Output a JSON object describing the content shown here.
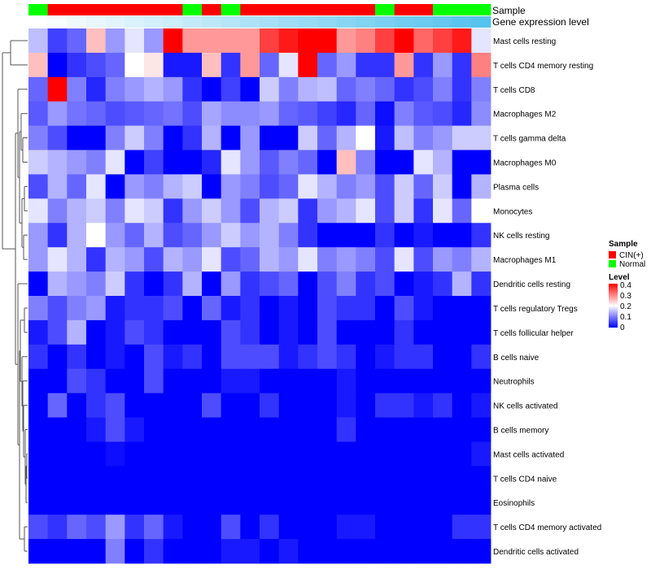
{
  "chart_data": {
    "type": "heatmap",
    "title": "",
    "row_labels": [
      "Mast cells resting",
      "T cells CD4 memory resting",
      "T cells CD8",
      "Macrophages M2",
      "T cells gamma delta",
      "Macrophages M0",
      "Plasma cells",
      "Monocytes",
      "NK cells resting",
      "Macrophages M1",
      "Dendritic cells resting",
      "T cells regulatory  Tregs",
      "T cells follicular helper",
      "B cells naive",
      "Neutrophils",
      "NK cells activated",
      "B cells memory",
      "Mast cells activated",
      "T cells CD4 naive",
      "Eosinophils",
      "T cells CD4 memory activated",
      "Dendritic cells activated"
    ],
    "annotation_tracks": [
      {
        "name": "Sample",
        "values": [
          "Normal",
          "CIN(+)",
          "CIN(+)",
          "CIN(+)",
          "CIN(+)",
          "CIN(+)",
          "CIN(+)",
          "CIN(+)",
          "Normal",
          "CIN(+)",
          "Normal",
          "CIN(+)",
          "CIN(+)",
          "CIN(+)",
          "CIN(+)",
          "CIN(+)",
          "CIN(+)",
          "CIN(+)",
          "Normal",
          "CIN(+)",
          "CIN(+)",
          "Normal",
          "Normal",
          "Normal"
        ]
      },
      {
        "name": "Gene expression level",
        "values": [
          0.0,
          0.04,
          0.09,
          0.13,
          0.17,
          0.22,
          0.26,
          0.3,
          0.35,
          0.39,
          0.43,
          0.48,
          0.52,
          0.57,
          0.61,
          0.65,
          0.7,
          0.74,
          0.78,
          0.83,
          0.87,
          0.91,
          0.96,
          1.0
        ]
      }
    ],
    "values": [
      [
        0.15,
        0.05,
        0.08,
        0.25,
        0.12,
        0.18,
        0.12,
        0.4,
        0.28,
        0.28,
        0.28,
        0.28,
        0.35,
        0.38,
        0.4,
        0.4,
        0.28,
        0.3,
        0.35,
        0.4,
        0.32,
        0.35,
        0.38,
        0.18
      ],
      [
        0.25,
        0.0,
        0.04,
        0.06,
        0.08,
        0.2,
        0.22,
        0.02,
        0.02,
        0.25,
        0.04,
        0.28,
        0.08,
        0.18,
        0.4,
        0.08,
        0.12,
        0.04,
        0.04,
        0.28,
        0.04,
        0.12,
        0.04,
        0.3
      ],
      [
        0.08,
        0.4,
        0.1,
        0.03,
        0.1,
        0.12,
        0.14,
        0.12,
        0.04,
        0.0,
        0.05,
        0.0,
        0.16,
        0.1,
        0.14,
        0.15,
        0.08,
        0.1,
        0.08,
        0.04,
        0.06,
        0.1,
        0.04,
        0.1
      ],
      [
        0.07,
        0.12,
        0.09,
        0.08,
        0.06,
        0.07,
        0.08,
        0.09,
        0.06,
        0.13,
        0.11,
        0.11,
        0.12,
        0.08,
        0.07,
        0.05,
        0.03,
        0.08,
        0.01,
        0.1,
        0.07,
        0.06,
        0.03,
        0.11
      ],
      [
        0.1,
        0.06,
        0.0,
        0.0,
        0.1,
        0.16,
        0.1,
        0.0,
        0.04,
        0.14,
        0.0,
        0.12,
        0.0,
        0.0,
        0.16,
        0.08,
        0.14,
        0.2,
        0.02,
        0.15,
        0.1,
        0.12,
        0.16,
        0.16
      ],
      [
        0.16,
        0.14,
        0.12,
        0.1,
        0.18,
        0.0,
        0.05,
        0.0,
        0.0,
        0.03,
        0.18,
        0.12,
        0.07,
        0.1,
        0.08,
        0.0,
        0.25,
        0.1,
        0.0,
        0.0,
        0.18,
        0.14,
        0.0,
        0.0
      ],
      [
        0.06,
        0.14,
        0.08,
        0.18,
        0.0,
        0.12,
        0.1,
        0.14,
        0.16,
        0.0,
        0.12,
        0.1,
        0.06,
        0.08,
        0.18,
        0.14,
        0.1,
        0.12,
        0.06,
        0.16,
        0.08,
        0.16,
        0.0,
        0.14
      ],
      [
        0.18,
        0.1,
        0.14,
        0.16,
        0.1,
        0.18,
        0.16,
        0.04,
        0.12,
        0.16,
        0.12,
        0.06,
        0.14,
        0.16,
        0.04,
        0.12,
        0.14,
        0.18,
        0.06,
        0.16,
        0.04,
        0.18,
        0.08,
        0.2
      ],
      [
        0.12,
        0.04,
        0.14,
        0.2,
        0.12,
        0.08,
        0.14,
        0.06,
        0.08,
        0.12,
        0.16,
        0.12,
        0.14,
        0.1,
        0.04,
        0.0,
        0.0,
        0.0,
        0.04,
        0.0,
        0.02,
        0.0,
        0.0,
        0.04
      ],
      [
        0.12,
        0.18,
        0.14,
        0.04,
        0.14,
        0.12,
        0.06,
        0.14,
        0.12,
        0.18,
        0.06,
        0.08,
        0.14,
        0.12,
        0.18,
        0.1,
        0.12,
        0.1,
        0.06,
        0.18,
        0.06,
        0.12,
        0.1,
        0.14
      ],
      [
        0.0,
        0.14,
        0.12,
        0.1,
        0.16,
        0.04,
        0.0,
        0.04,
        0.14,
        0.0,
        0.12,
        0.04,
        0.06,
        0.08,
        0.0,
        0.06,
        0.1,
        0.04,
        0.06,
        0.0,
        0.02,
        0.04,
        0.14,
        0.04
      ],
      [
        0.1,
        0.06,
        0.1,
        0.12,
        0.02,
        0.04,
        0.04,
        0.06,
        0.0,
        0.08,
        0.02,
        0.04,
        0.0,
        0.02,
        0.0,
        0.06,
        0.04,
        0.04,
        0.0,
        0.06,
        0.02,
        0.0,
        0.0,
        0.0
      ],
      [
        0.02,
        0.06,
        0.14,
        0.0,
        0.02,
        0.06,
        0.04,
        0.0,
        0.0,
        0.0,
        0.06,
        0.04,
        0.0,
        0.02,
        0.0,
        0.06,
        0.0,
        0.0,
        0.0,
        0.04,
        0.0,
        0.0,
        0.0,
        0.0
      ],
      [
        0.04,
        0.0,
        0.04,
        0.0,
        0.02,
        0.0,
        0.06,
        0.02,
        0.04,
        0.0,
        0.06,
        0.06,
        0.06,
        0.02,
        0.04,
        0.06,
        0.04,
        0.0,
        0.02,
        0.04,
        0.04,
        0.0,
        0.0,
        0.04
      ],
      [
        0.0,
        0.0,
        0.06,
        0.04,
        0.0,
        0.0,
        0.06,
        0.0,
        0.0,
        0.0,
        0.02,
        0.02,
        0.0,
        0.0,
        0.0,
        0.0,
        0.02,
        0.0,
        0.0,
        0.0,
        0.0,
        0.0,
        0.0,
        0.0
      ],
      [
        0.0,
        0.08,
        0.0,
        0.04,
        0.06,
        0.0,
        0.0,
        0.0,
        0.0,
        0.06,
        0.0,
        0.0,
        0.04,
        0.0,
        0.0,
        0.0,
        0.02,
        0.0,
        0.04,
        0.04,
        0.02,
        0.04,
        0.0,
        0.02
      ],
      [
        0.0,
        0.0,
        0.0,
        0.02,
        0.06,
        0.02,
        0.0,
        0.0,
        0.0,
        0.0,
        0.0,
        0.0,
        0.0,
        0.0,
        0.0,
        0.0,
        0.04,
        0.0,
        0.0,
        0.0,
        0.0,
        0.0,
        0.0,
        0.0
      ],
      [
        0.0,
        0.0,
        0.0,
        0.0,
        0.01,
        0.0,
        0.0,
        0.0,
        0.0,
        0.0,
        0.0,
        0.0,
        0.0,
        0.0,
        0.0,
        0.0,
        0.0,
        0.0,
        0.0,
        0.0,
        0.0,
        0.0,
        0.0,
        0.02
      ],
      [
        0.0,
        0.0,
        0.0,
        0.0,
        0.0,
        0.0,
        0.0,
        0.0,
        0.0,
        0.0,
        0.0,
        0.0,
        0.0,
        0.0,
        0.0,
        0.0,
        0.0,
        0.0,
        0.0,
        0.0,
        0.0,
        0.0,
        0.0,
        0.0
      ],
      [
        0.0,
        0.0,
        0.0,
        0.0,
        0.0,
        0.0,
        0.0,
        0.0,
        0.0,
        0.0,
        0.0,
        0.0,
        0.0,
        0.0,
        0.0,
        0.0,
        0.0,
        0.0,
        0.0,
        0.0,
        0.0,
        0.0,
        0.0,
        0.0
      ],
      [
        0.06,
        0.04,
        0.08,
        0.06,
        0.12,
        0.04,
        0.08,
        0.02,
        0.0,
        0.0,
        0.06,
        0.0,
        0.04,
        0.0,
        0.0,
        0.0,
        0.02,
        0.02,
        0.0,
        0.0,
        0.0,
        0.0,
        0.04,
        0.04
      ],
      [
        0.0,
        0.0,
        0.0,
        0.0,
        0.1,
        0.0,
        0.04,
        0.0,
        0.0,
        0.0,
        0.02,
        0.02,
        0.0,
        0.02,
        0.0,
        0.0,
        0.0,
        0.0,
        0.0,
        0.0,
        0.0,
        0.0,
        0.0,
        0.0
      ]
    ],
    "legend": {
      "sample_title": "Sample",
      "sample_entries": [
        {
          "label": "CIN(+)",
          "color": "#ff0000"
        },
        {
          "label": "Normal",
          "color": "#00ff00"
        }
      ],
      "level_title": "Level",
      "level_ticks": [
        "0.4",
        "0.3",
        "0.2",
        "0.1",
        "0"
      ],
      "level_range": [
        0,
        0.4
      ],
      "placement": "right"
    },
    "colors": {
      "low": "#0000ff",
      "mid": "#ffffff",
      "high": "#ff0000",
      "expr_low": "#ffffff",
      "expr_high": "#55c3ee"
    }
  }
}
